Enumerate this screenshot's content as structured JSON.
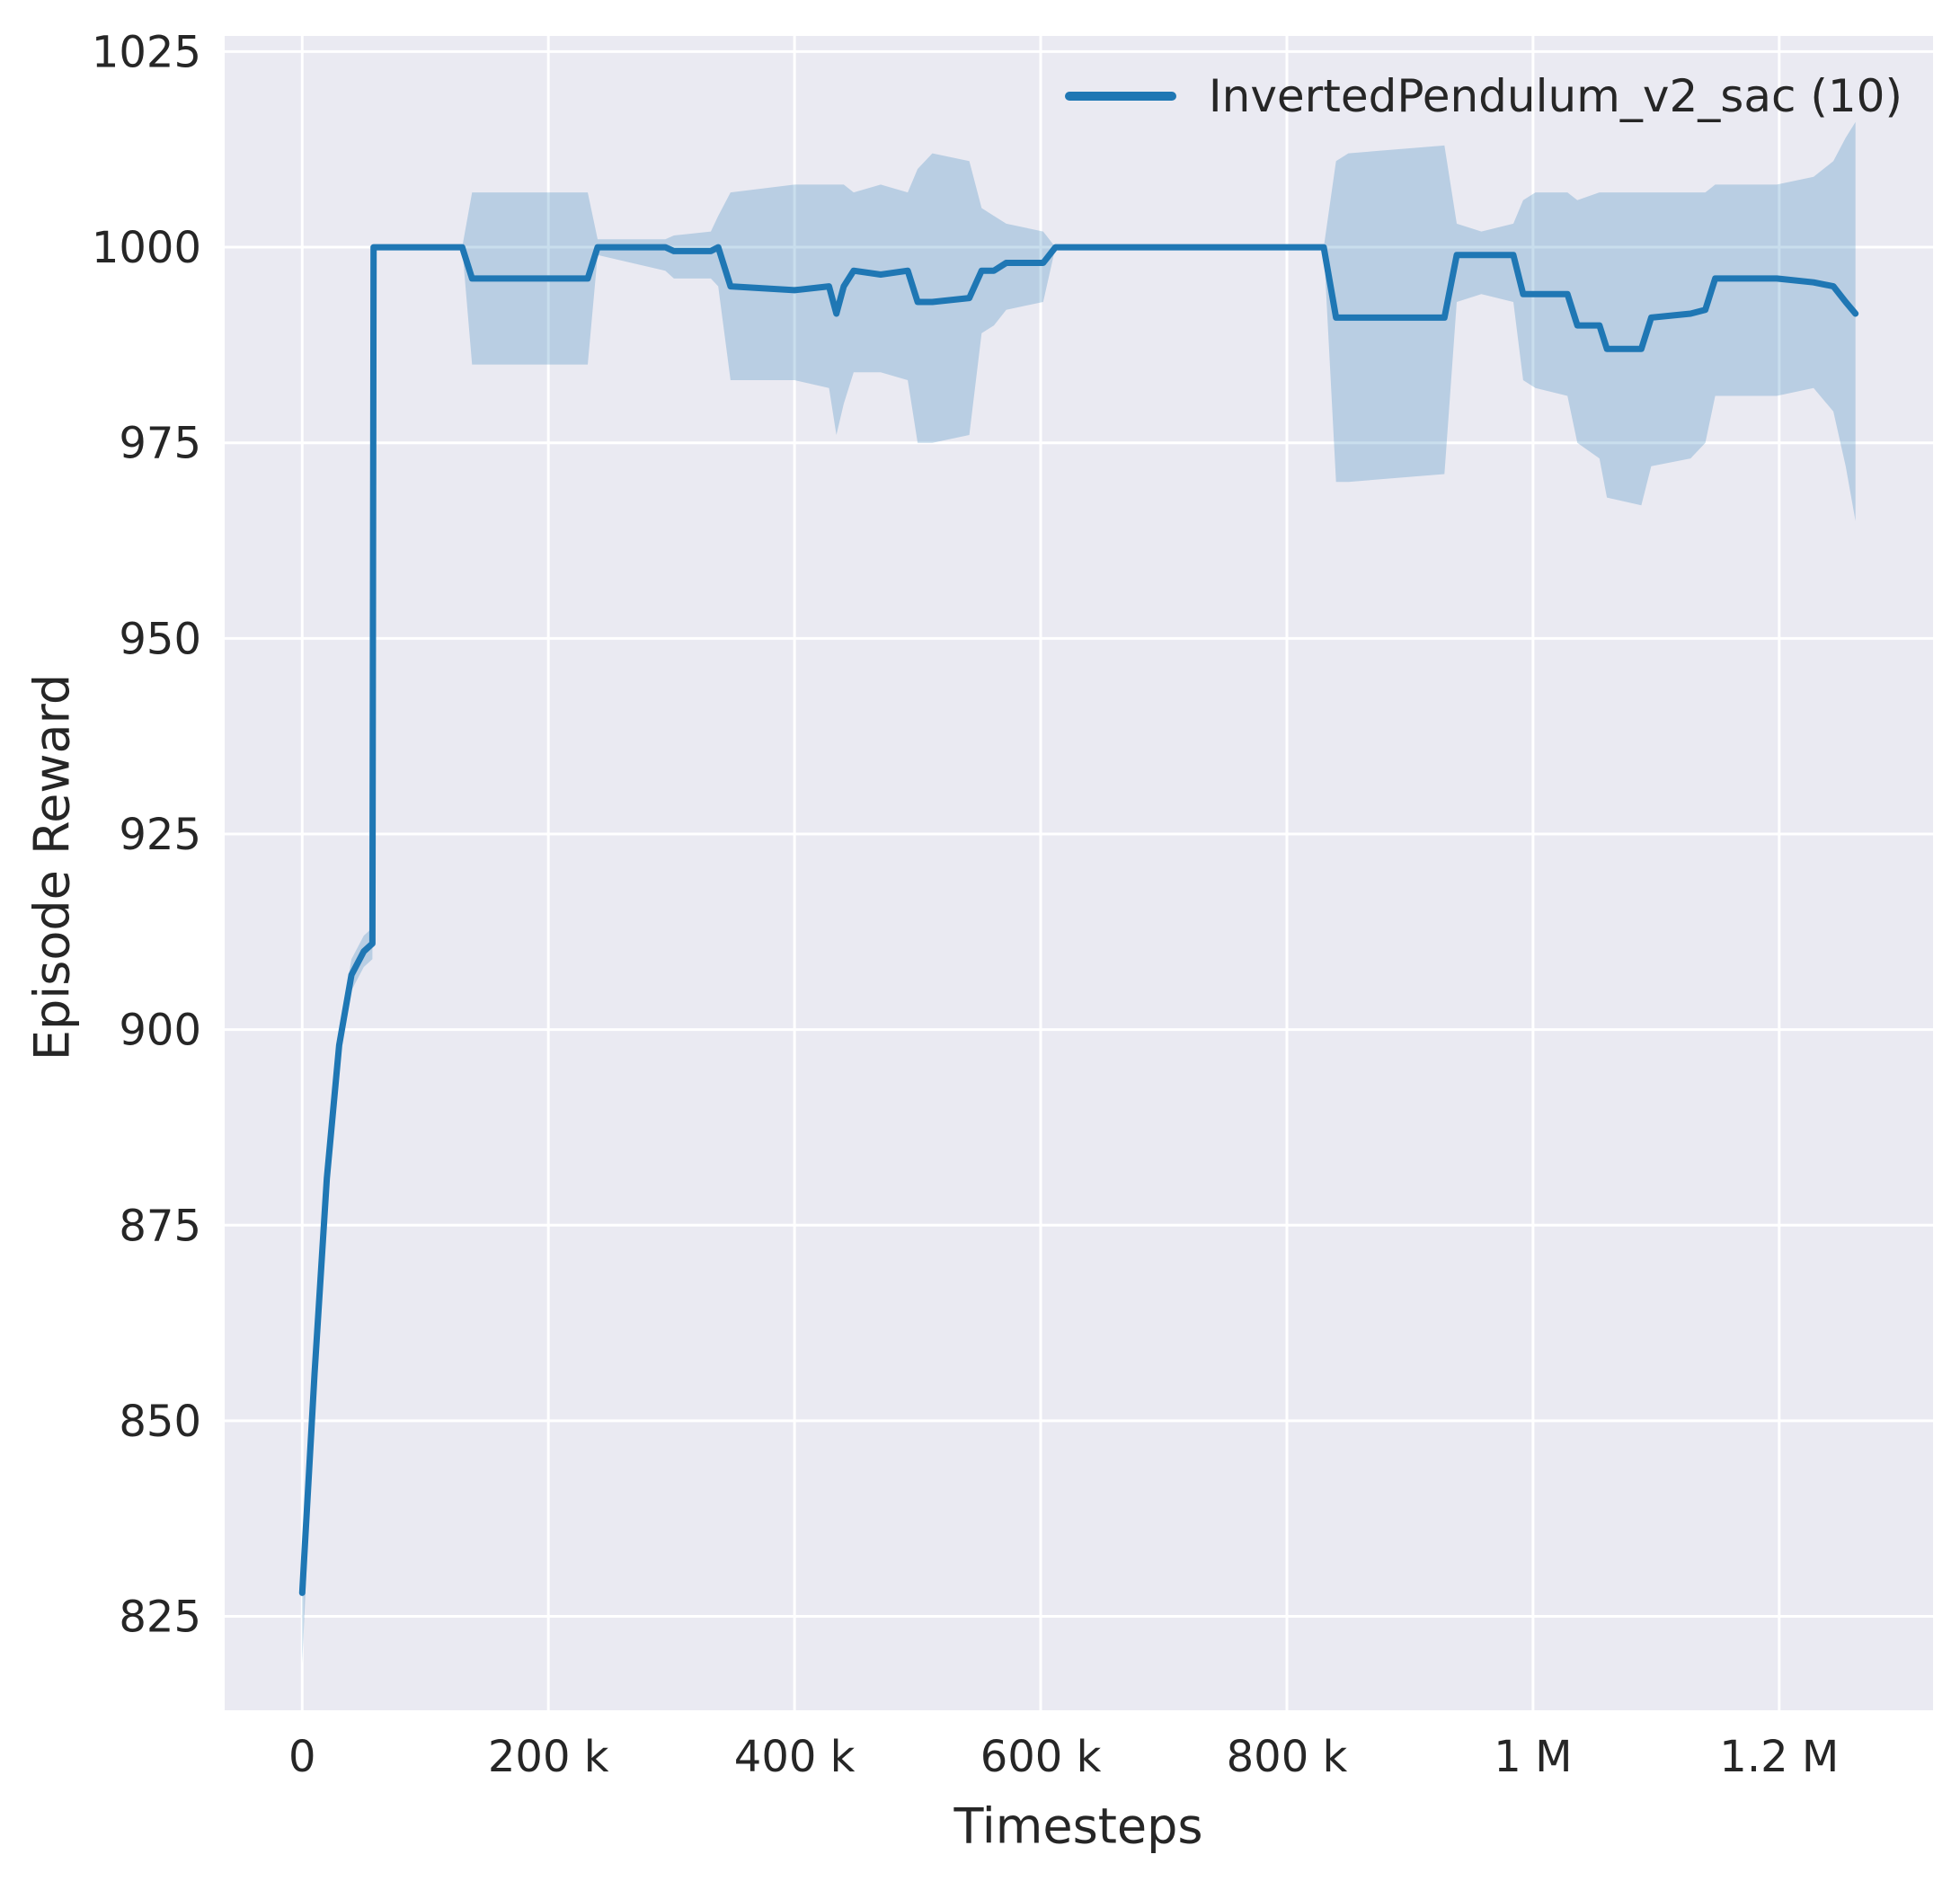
{
  "chart_data": {
    "type": "line",
    "title": "",
    "xlabel": "Timesteps",
    "ylabel": "Episode Reward",
    "legend": [
      "InvertedPendulum_v2_sac (10)"
    ],
    "legend_position": "upper right",
    "grid": true,
    "plot_bg": "#eaeaf2",
    "grid_color": "#ffffff",
    "line_color": "#1f77b4",
    "band_color": "#1f77b4",
    "band_opacity": 0.24,
    "text_color": "#262626",
    "xlim": [
      -63000,
      1325000
    ],
    "ylim": [
      813,
      1027
    ],
    "x_ticks": [
      {
        "v": 0,
        "label": "0"
      },
      {
        "v": 200000,
        "label": "200 k"
      },
      {
        "v": 400000,
        "label": "400 k"
      },
      {
        "v": 600000,
        "label": "600 k"
      },
      {
        "v": 800000,
        "label": "800 k"
      },
      {
        "v": 1000000,
        "label": "1 M"
      },
      {
        "v": 1200000,
        "label": "1.2 M"
      }
    ],
    "y_ticks": [
      {
        "v": 825,
        "label": "825"
      },
      {
        "v": 850,
        "label": "850"
      },
      {
        "v": 875,
        "label": "875"
      },
      {
        "v": 900,
        "label": "900"
      },
      {
        "v": 925,
        "label": "925"
      },
      {
        "v": 950,
        "label": "950"
      },
      {
        "v": 975,
        "label": "975"
      },
      {
        "v": 1000,
        "label": "1000"
      },
      {
        "v": 1025,
        "label": "1025"
      }
    ],
    "series": [
      {
        "name": "InvertedPendulum_v2_sac (10)",
        "points_format": [
          "timesteps",
          "mean_reward",
          "band_low",
          "band_high"
        ],
        "points": [
          [
            0,
            828,
            819,
            829
          ],
          [
            10000,
            856,
            853,
            858
          ],
          [
            20000,
            881,
            878,
            883
          ],
          [
            30000,
            898,
            896,
            900
          ],
          [
            40000,
            907,
            905,
            909
          ],
          [
            50000,
            910,
            908,
            912
          ],
          [
            57000,
            911,
            909,
            913
          ],
          [
            58000,
            1000,
            1000,
            1000
          ],
          [
            130000,
            1000,
            1000,
            1000
          ],
          [
            138000,
            996,
            985,
            1007
          ],
          [
            232000,
            996,
            985,
            1007
          ],
          [
            240000,
            1000,
            999,
            1001
          ],
          [
            295000,
            1000,
            997,
            1001
          ],
          [
            302000,
            999.5,
            996,
            1001.5
          ],
          [
            332000,
            999.5,
            996,
            1002
          ],
          [
            338000,
            1000,
            995,
            1004
          ],
          [
            348000,
            995,
            983,
            1007
          ],
          [
            400000,
            994.5,
            983,
            1008
          ],
          [
            428000,
            995,
            982,
            1008
          ],
          [
            434000,
            991.5,
            976,
            1008
          ],
          [
            440000,
            995,
            980,
            1008
          ],
          [
            448000,
            997,
            984,
            1007
          ],
          [
            470000,
            996.5,
            984,
            1008
          ],
          [
            492000,
            997,
            983,
            1007
          ],
          [
            500000,
            993,
            975,
            1010
          ],
          [
            512000,
            993,
            975,
            1012
          ],
          [
            542000,
            993.5,
            976,
            1011
          ],
          [
            552000,
            997,
            989,
            1005
          ],
          [
            562000,
            997,
            990,
            1004
          ],
          [
            572000,
            998,
            992,
            1003
          ],
          [
            602000,
            998,
            993,
            1002
          ],
          [
            612000,
            1000,
            1000,
            1000
          ],
          [
            830000,
            1000,
            1000,
            1000
          ],
          [
            840000,
            991,
            970,
            1011
          ],
          [
            850000,
            991,
            970,
            1012
          ],
          [
            928000,
            991,
            971,
            1013
          ],
          [
            938000,
            999,
            993,
            1003
          ],
          [
            958000,
            999,
            994,
            1002
          ],
          [
            984000,
            999,
            993,
            1003
          ],
          [
            992000,
            994,
            983,
            1006
          ],
          [
            1002000,
            994,
            982,
            1007
          ],
          [
            1028000,
            994,
            981,
            1007
          ],
          [
            1036000,
            990,
            975,
            1006
          ],
          [
            1054000,
            990,
            973,
            1007
          ],
          [
            1060000,
            987,
            968,
            1007
          ],
          [
            1088000,
            987,
            967,
            1007
          ],
          [
            1096000,
            991,
            972,
            1007
          ],
          [
            1128000,
            991.5,
            973,
            1007
          ],
          [
            1140000,
            992,
            975,
            1007
          ],
          [
            1148000,
            996,
            981,
            1008
          ],
          [
            1198000,
            996,
            981,
            1008
          ],
          [
            1228000,
            995.5,
            982,
            1009
          ],
          [
            1244000,
            995,
            979,
            1011
          ],
          [
            1254000,
            993,
            972,
            1014
          ],
          [
            1262000,
            991.5,
            965,
            1016
          ]
        ]
      }
    ]
  }
}
